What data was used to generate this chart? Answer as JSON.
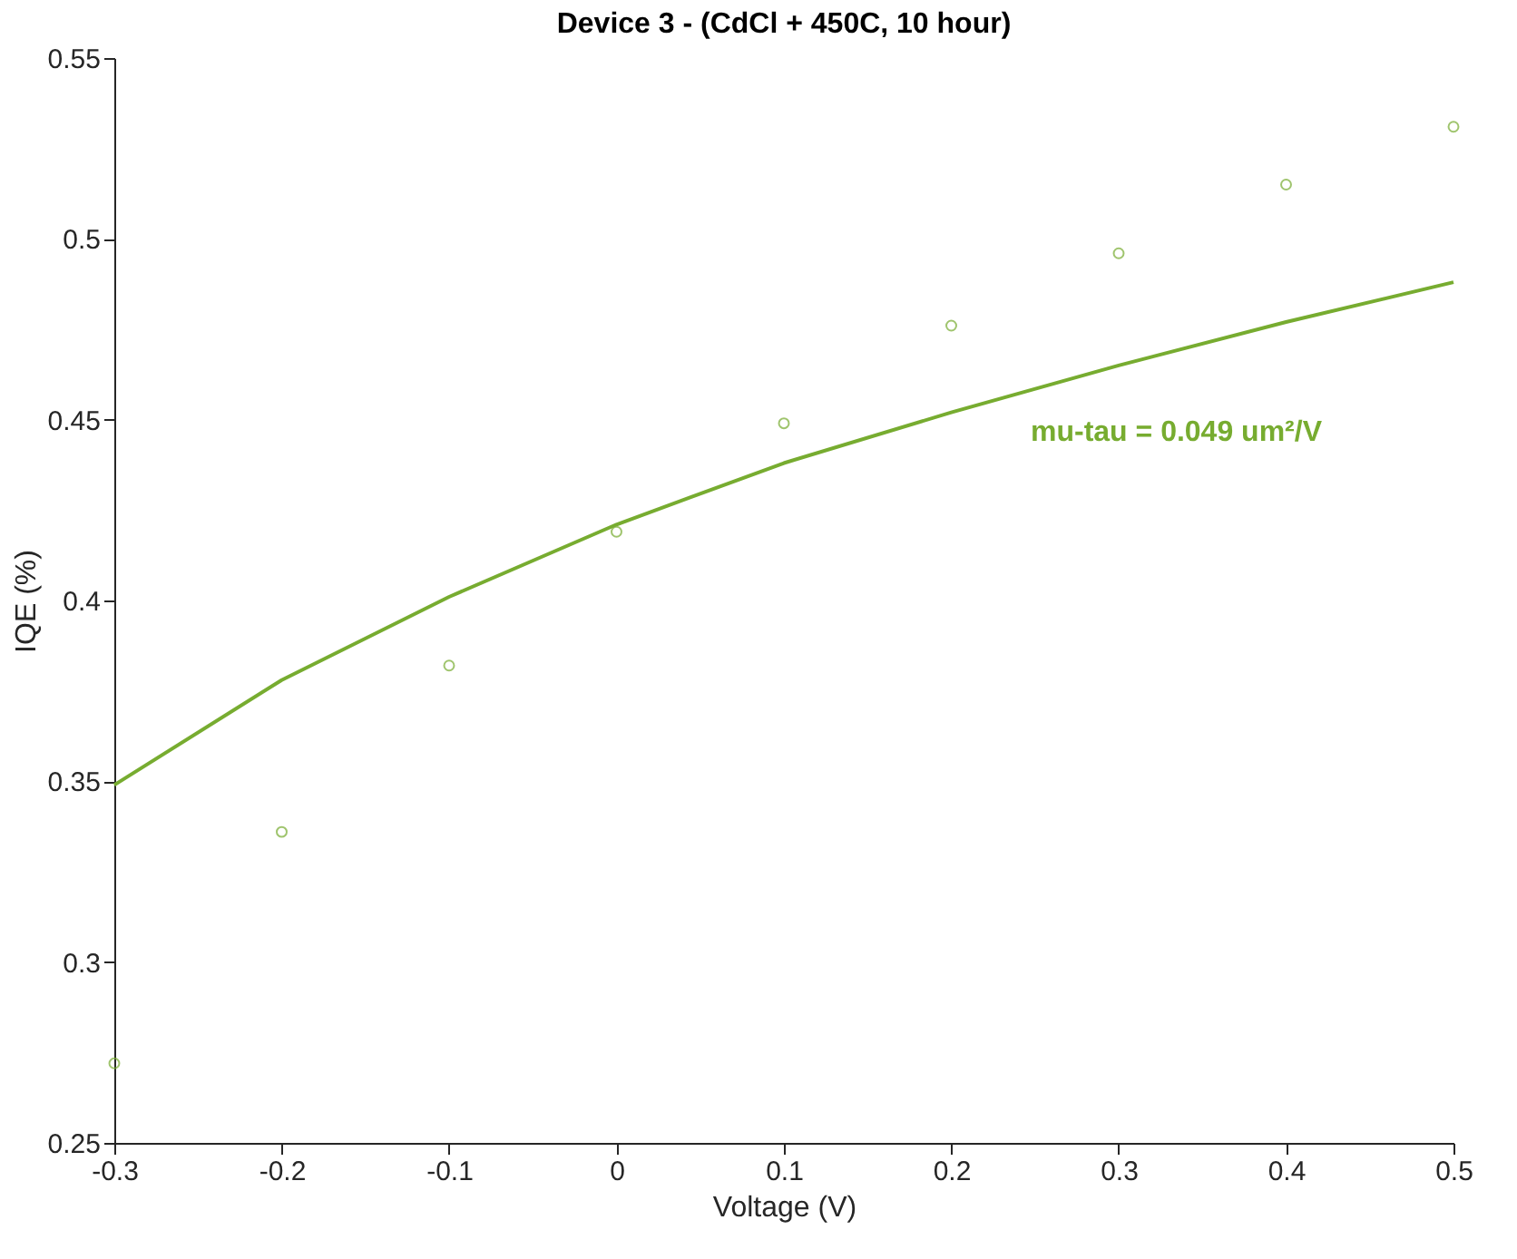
{
  "chart_data": {
    "type": "scatter",
    "title": "Device 3 - (CdCl + 450C, 10 hour)",
    "xlabel": "Voltage (V)",
    "ylabel": "IQE (%)",
    "x": [
      -0.3,
      -0.2,
      -0.1,
      0,
      0.1,
      0.2,
      0.3,
      0.4,
      0.5
    ],
    "series": [
      {
        "color": "#77ac30",
        "marker": "circle",
        "values": [
          0.272,
          0.336,
          0.382,
          0.419,
          0.449,
          0.476,
          0.496,
          0.515,
          0.531
        ]
      },
      {
        "type": "line",
        "color": "#77ac30",
        "marker": "none",
        "values": [
          0.349,
          0.378,
          0.401,
          0.421,
          0.438,
          0.452,
          0.465,
          0.477,
          0.488
        ]
      }
    ],
    "annotations": [
      "mu-tau = 0.049 um²/V"
    ],
    "xlim": [
      -0.3,
      0.5
    ],
    "xticks": [
      -0.3,
      -0.2,
      -0.1,
      0,
      0.1,
      0.2,
      0.3,
      0.4,
      0.5
    ],
    "ylim": [
      0.25,
      0.55
    ],
    "yticks": [
      0.25,
      0.3,
      0.35,
      0.4,
      0.45,
      0.5,
      0.55
    ],
    "grid": false
  }
}
